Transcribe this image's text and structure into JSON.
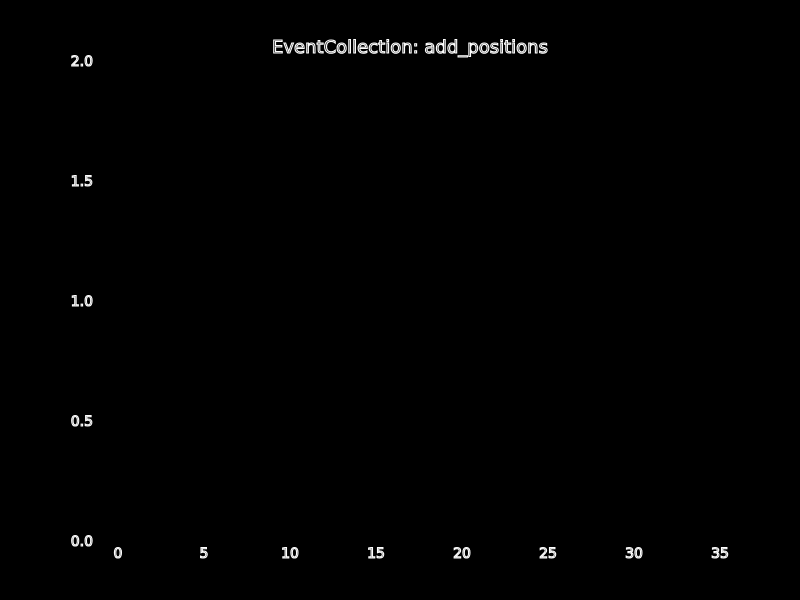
{
  "chart_data": {
    "type": "line",
    "title": "EventCollection: add_positions",
    "xlabel": "",
    "ylabel": "",
    "xlim": [
      0,
      35
    ],
    "ylim": [
      0,
      2.0
    ],
    "x_ticks": [
      "0",
      "5",
      "10",
      "15",
      "20",
      "25",
      "30",
      "35"
    ],
    "y_ticks": [
      "0.0",
      "0.5",
      "1.0",
      "1.5",
      "2.0"
    ],
    "grid": false,
    "series": []
  },
  "colors": {
    "background": "#000000",
    "text_outline": "#ffffff",
    "text_fill": "#000000"
  }
}
